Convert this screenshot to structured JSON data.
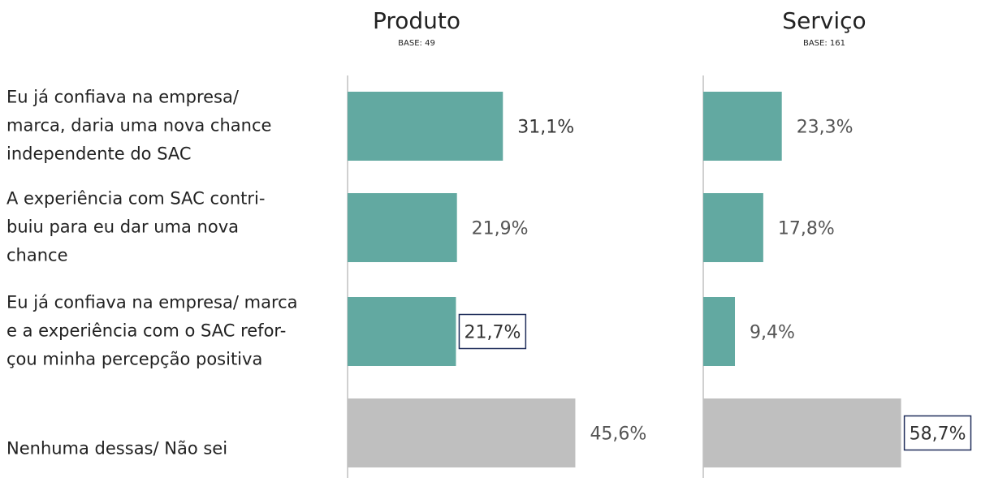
{
  "chart_data": {
    "type": "bar",
    "orientation": "horizontal",
    "categories": [
      [
        "Eu já confiava na empresa/",
        "marca, daria uma nova chance",
        "independente do SAC"
      ],
      [
        "A experiência com SAC contri-",
        "buiu para eu dar uma nova",
        "chance"
      ],
      [
        "Eu já confiava na empresa/ marca",
        "e a experiência com o SAC refor-",
        "çou minha percepção positiva"
      ],
      [
        "Nenhuma dessas/ Não sei"
      ]
    ],
    "colors": [
      "#62a9a1",
      "#62a9a1",
      "#62a9a1",
      "#bfbfbf"
    ],
    "series": [
      {
        "name": "Produto",
        "base": "BASE: 49",
        "values": [
          31.1,
          21.9,
          21.7,
          45.6
        ],
        "value_labels": [
          "31,1%",
          "21,9%",
          "21,7%",
          "45,6%"
        ],
        "boxed": [
          2
        ]
      },
      {
        "name": "Serviço",
        "base": "BASE: 161",
        "values": [
          23.3,
          17.8,
          9.4,
          58.7
        ],
        "value_labels": [
          "23,3%",
          "17,8%",
          "9,4%",
          "58,7%"
        ],
        "boxed": [
          3
        ]
      }
    ]
  }
}
